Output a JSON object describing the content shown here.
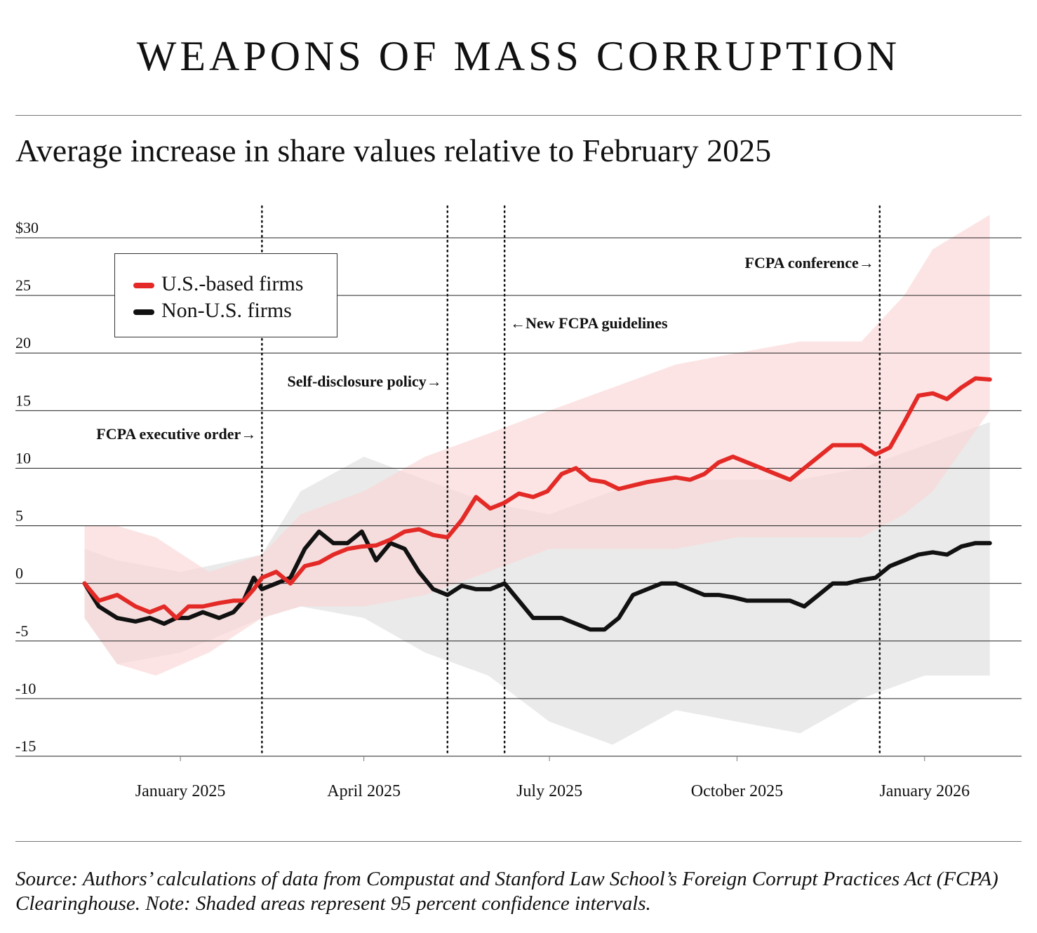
{
  "title": "WEAPONS OF MASS CORRUPTION",
  "subtitle": "Average increase in share values relative to February 2025",
  "source_note": "Source: Authors’ calculations of data from Compustat and Stanford Law School’s Foreign Corrupt Practices Act (FCPA) Clearinghouse. Note: Shaded areas represent 95 percent confidence intervals.",
  "legend": {
    "us_label": "U.S.-based firms",
    "non_us_label": "Non-U.S. firms"
  },
  "colors": {
    "us_line": "#e32a26",
    "us_band": "#fbd5d5",
    "non_us_line": "#111111",
    "non_us_band": "#d8d8d8",
    "grid": "#222222"
  },
  "chart_data": {
    "type": "line",
    "title": "Average increase in share values relative to February 2025",
    "xlabel": "",
    "ylabel": "",
    "y_unit_prefix": "$",
    "ylim": [
      -15,
      30
    ],
    "y_ticks": [
      30,
      25,
      20,
      15,
      10,
      5,
      0,
      -5,
      -10,
      -15
    ],
    "y_tick_labels": [
      "$30",
      "25",
      "20",
      "15",
      "10",
      "5",
      "0",
      "-5",
      "-10",
      "-15"
    ],
    "x_range": [
      "2024-11-10",
      "2026-02-10"
    ],
    "x_ticks": [
      {
        "date": "2025-01-01",
        "label": "January 2025"
      },
      {
        "date": "2025-04-01",
        "label": "April 2025"
      },
      {
        "date": "2025-07-01",
        "label": "July 2025"
      },
      {
        "date": "2025-10-01",
        "label": "October 2025"
      },
      {
        "date": "2026-01-01",
        "label": "January 2026"
      }
    ],
    "events": [
      {
        "date": "2025-02-10",
        "label": "FCPA executive order",
        "arrow": "left-of-line"
      },
      {
        "date": "2025-05-12",
        "label": "Self-disclosure policy",
        "arrow": "left-of-line"
      },
      {
        "date": "2025-06-09",
        "label": "New FCPA guidelines",
        "arrow": "right-of-line"
      },
      {
        "date": "2025-12-10",
        "label": "FCPA conference",
        "arrow": "left-of-line"
      }
    ],
    "series": [
      {
        "name": "U.S.-based firms",
        "points": [
          [
            "2024-11-15",
            0
          ],
          [
            "2024-11-22",
            -1.5
          ],
          [
            "2024-12-01",
            -1
          ],
          [
            "2024-12-10",
            -2
          ],
          [
            "2024-12-17",
            -2.5
          ],
          [
            "2024-12-24",
            -2
          ],
          [
            "2024-12-30",
            -3
          ],
          [
            "2025-01-05",
            -2
          ],
          [
            "2025-01-12",
            -2
          ],
          [
            "2025-01-20",
            -1.7
          ],
          [
            "2025-01-27",
            -1.5
          ],
          [
            "2025-02-01",
            -1.5
          ],
          [
            "2025-02-06",
            -0.5
          ],
          [
            "2025-02-10",
            0.5
          ],
          [
            "2025-02-17",
            1
          ],
          [
            "2025-02-24",
            0
          ],
          [
            "2025-03-03",
            1.5
          ],
          [
            "2025-03-10",
            1.8
          ],
          [
            "2025-03-17",
            2.5
          ],
          [
            "2025-03-24",
            3
          ],
          [
            "2025-03-31",
            3.2
          ],
          [
            "2025-04-07",
            3.3
          ],
          [
            "2025-04-14",
            3.8
          ],
          [
            "2025-04-21",
            4.5
          ],
          [
            "2025-04-28",
            4.7
          ],
          [
            "2025-05-05",
            4.2
          ],
          [
            "2025-05-12",
            4
          ],
          [
            "2025-05-19",
            5.5
          ],
          [
            "2025-05-26",
            7.5
          ],
          [
            "2025-06-02",
            6.5
          ],
          [
            "2025-06-09",
            7
          ],
          [
            "2025-06-16",
            7.8
          ],
          [
            "2025-06-23",
            7.5
          ],
          [
            "2025-06-30",
            8
          ],
          [
            "2025-07-07",
            9.5
          ],
          [
            "2025-07-14",
            10
          ],
          [
            "2025-07-21",
            9
          ],
          [
            "2025-07-28",
            8.8
          ],
          [
            "2025-08-04",
            8.2
          ],
          [
            "2025-08-11",
            8.5
          ],
          [
            "2025-08-18",
            8.8
          ],
          [
            "2025-08-25",
            9
          ],
          [
            "2025-09-01",
            9.2
          ],
          [
            "2025-09-08",
            9
          ],
          [
            "2025-09-15",
            9.5
          ],
          [
            "2025-09-22",
            10.5
          ],
          [
            "2025-09-29",
            11
          ],
          [
            "2025-10-06",
            10.5
          ],
          [
            "2025-10-13",
            10
          ],
          [
            "2025-10-20",
            9.5
          ],
          [
            "2025-10-27",
            9
          ],
          [
            "2025-11-03",
            10
          ],
          [
            "2025-11-10",
            11
          ],
          [
            "2025-11-17",
            12
          ],
          [
            "2025-11-24",
            12
          ],
          [
            "2025-12-01",
            12
          ],
          [
            "2025-12-08",
            11.2
          ],
          [
            "2025-12-15",
            11.8
          ],
          [
            "2025-12-22",
            14
          ],
          [
            "2025-12-29",
            16.3
          ],
          [
            "2026-01-05",
            16.5
          ],
          [
            "2026-01-12",
            16
          ],
          [
            "2026-01-19",
            17
          ],
          [
            "2026-01-26",
            17.8
          ],
          [
            "2026-02-02",
            17.7
          ]
        ]
      },
      {
        "name": "Non-U.S. firms",
        "points": [
          [
            "2024-11-15",
            0
          ],
          [
            "2024-11-22",
            -2
          ],
          [
            "2024-12-01",
            -3
          ],
          [
            "2024-12-10",
            -3.3
          ],
          [
            "2024-12-17",
            -3
          ],
          [
            "2024-12-24",
            -3.5
          ],
          [
            "2024-12-30",
            -3
          ],
          [
            "2025-01-05",
            -3
          ],
          [
            "2025-01-12",
            -2.5
          ],
          [
            "2025-01-20",
            -3
          ],
          [
            "2025-01-27",
            -2.5
          ],
          [
            "2025-02-01",
            -1.5
          ],
          [
            "2025-02-06",
            0.5
          ],
          [
            "2025-02-10",
            -0.5
          ],
          [
            "2025-02-17",
            0
          ],
          [
            "2025-02-24",
            0.5
          ],
          [
            "2025-03-03",
            3
          ],
          [
            "2025-03-10",
            4.5
          ],
          [
            "2025-03-17",
            3.5
          ],
          [
            "2025-03-24",
            3.5
          ],
          [
            "2025-03-31",
            4.5
          ],
          [
            "2025-04-07",
            2
          ],
          [
            "2025-04-14",
            3.5
          ],
          [
            "2025-04-21",
            3
          ],
          [
            "2025-04-28",
            1
          ],
          [
            "2025-05-05",
            -0.5
          ],
          [
            "2025-05-12",
            -1
          ],
          [
            "2025-05-19",
            -0.2
          ],
          [
            "2025-05-26",
            -0.5
          ],
          [
            "2025-06-02",
            -0.5
          ],
          [
            "2025-06-09",
            0
          ],
          [
            "2025-06-16",
            -1.5
          ],
          [
            "2025-06-23",
            -3
          ],
          [
            "2025-06-30",
            -3
          ],
          [
            "2025-07-07",
            -3
          ],
          [
            "2025-07-14",
            -3.5
          ],
          [
            "2025-07-21",
            -4
          ],
          [
            "2025-07-28",
            -4
          ],
          [
            "2025-08-04",
            -3
          ],
          [
            "2025-08-11",
            -1
          ],
          [
            "2025-08-18",
            -0.5
          ],
          [
            "2025-08-25",
            0
          ],
          [
            "2025-09-01",
            0
          ],
          [
            "2025-09-08",
            -0.5
          ],
          [
            "2025-09-15",
            -1
          ],
          [
            "2025-09-22",
            -1
          ],
          [
            "2025-09-29",
            -1.2
          ],
          [
            "2025-10-06",
            -1.5
          ],
          [
            "2025-10-13",
            -1.5
          ],
          [
            "2025-10-20",
            -1.5
          ],
          [
            "2025-10-27",
            -1.5
          ],
          [
            "2025-11-03",
            -2
          ],
          [
            "2025-11-10",
            -1
          ],
          [
            "2025-11-17",
            0
          ],
          [
            "2025-11-24",
            0
          ],
          [
            "2025-12-01",
            0.3
          ],
          [
            "2025-12-08",
            0.5
          ],
          [
            "2025-12-15",
            1.5
          ],
          [
            "2025-12-22",
            2
          ],
          [
            "2025-12-29",
            2.5
          ],
          [
            "2026-01-05",
            2.7
          ],
          [
            "2026-01-12",
            2.5
          ],
          [
            "2026-01-19",
            3.2
          ],
          [
            "2026-01-26",
            3.5
          ],
          [
            "2026-02-02",
            3.5
          ]
        ]
      }
    ],
    "confidence_bands": [
      {
        "series": "U.S.-based firms",
        "points": [
          [
            "2024-11-15",
            -3,
            5
          ],
          [
            "2024-12-01",
            -7,
            5
          ],
          [
            "2024-12-20",
            -8,
            4
          ],
          [
            "2025-01-15",
            -6,
            1
          ],
          [
            "2025-02-10",
            -3,
            2.5
          ],
          [
            "2025-03-01",
            -2,
            6
          ],
          [
            "2025-04-01",
            -2,
            8
          ],
          [
            "2025-05-01",
            -1,
            11
          ],
          [
            "2025-06-01",
            1,
            13
          ],
          [
            "2025-07-01",
            3,
            15
          ],
          [
            "2025-08-01",
            3,
            17
          ],
          [
            "2025-09-01",
            3,
            19
          ],
          [
            "2025-10-01",
            4,
            20
          ],
          [
            "2025-11-01",
            4,
            21
          ],
          [
            "2025-12-01",
            4,
            21
          ],
          [
            "2025-12-22",
            6,
            25
          ],
          [
            "2026-01-05",
            8,
            29
          ],
          [
            "2026-02-02",
            15,
            32
          ]
        ]
      },
      {
        "series": "Non-U.S. firms",
        "points": [
          [
            "2024-11-15",
            -3,
            3
          ],
          [
            "2024-12-01",
            -7,
            2
          ],
          [
            "2025-01-01",
            -6,
            1
          ],
          [
            "2025-02-10",
            -3,
            2.5
          ],
          [
            "2025-03-01",
            -2,
            8
          ],
          [
            "2025-04-01",
            -3,
            11
          ],
          [
            "2025-05-01",
            -6,
            9
          ],
          [
            "2025-06-01",
            -8,
            7
          ],
          [
            "2025-07-01",
            -12,
            6
          ],
          [
            "2025-08-01",
            -14,
            8
          ],
          [
            "2025-09-01",
            -11,
            9
          ],
          [
            "2025-10-01",
            -12,
            9
          ],
          [
            "2025-11-01",
            -13,
            9
          ],
          [
            "2025-12-01",
            -10,
            10
          ],
          [
            "2026-01-01",
            -8,
            12
          ],
          [
            "2026-02-02",
            -8,
            14
          ]
        ]
      }
    ]
  }
}
